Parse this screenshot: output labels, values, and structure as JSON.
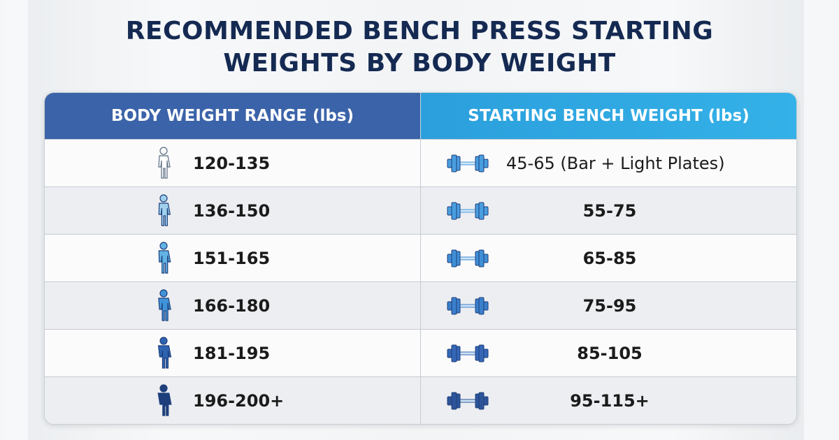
{
  "header": {
    "title": "RECOMMENDED BENCH PRESS STARTING WEIGHTS BY BODY WEIGHT"
  },
  "table": {
    "columns": [
      "BODY WEIGHT RANGE (lbs)",
      "STARTING BENCH WEIGHT (lbs)"
    ],
    "rows": [
      [
        "120-135",
        "45-65 (Bar + Light Plates)"
      ],
      [
        "136-150",
        "55-75"
      ],
      [
        "151-165",
        "65-85"
      ],
      [
        "166-180",
        "75-95"
      ],
      [
        "181-195",
        "85-105"
      ],
      [
        "196-200+",
        "95-115+"
      ]
    ]
  }
}
